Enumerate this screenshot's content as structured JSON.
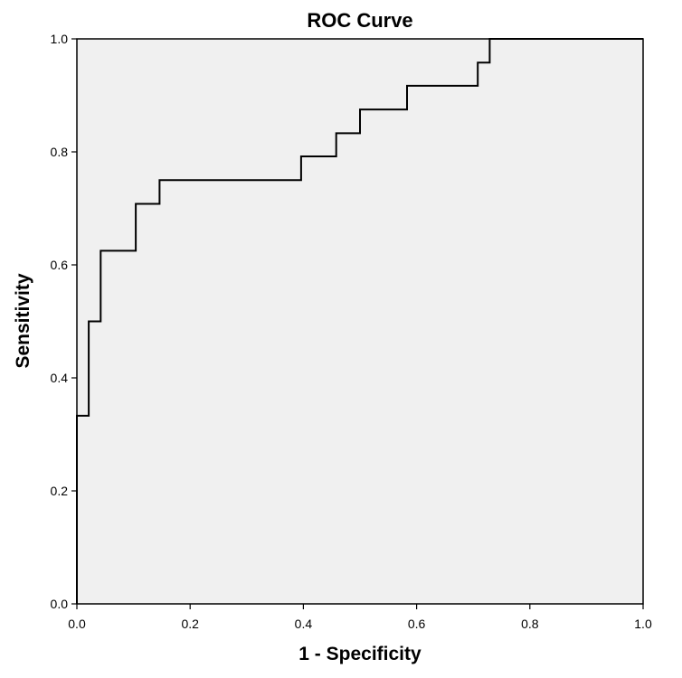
{
  "chart_data": {
    "type": "line",
    "title": "ROC Curve",
    "xlabel": "1 - Specificity",
    "ylabel": "Sensitivity",
    "xlim": [
      0,
      1
    ],
    "ylim": [
      0,
      1
    ],
    "x_ticks": [
      "0.0",
      "0.2",
      "0.4",
      "0.6",
      "0.8",
      "1.0"
    ],
    "y_ticks": [
      "0.0",
      "0.2",
      "0.4",
      "0.6",
      "0.8",
      "1.0"
    ],
    "grid": false,
    "plot_background": "#f0f0f0",
    "line_color": "#000000",
    "series": [
      {
        "name": "ROC",
        "step": true,
        "x": [
          0,
          0,
          0.021,
          0.021,
          0.042,
          0.042,
          0.104,
          0.104,
          0.146,
          0.146,
          0.396,
          0.396,
          0.458,
          0.458,
          0.5,
          0.5,
          0.583,
          0.583,
          0.708,
          0.708,
          0.729,
          0.729,
          1.0
        ],
        "y": [
          0,
          0.333,
          0.333,
          0.5,
          0.5,
          0.625,
          0.625,
          0.708,
          0.708,
          0.75,
          0.75,
          0.792,
          0.792,
          0.833,
          0.833,
          0.875,
          0.875,
          0.917,
          0.917,
          0.958,
          0.958,
          1.0,
          1.0
        ]
      }
    ]
  }
}
